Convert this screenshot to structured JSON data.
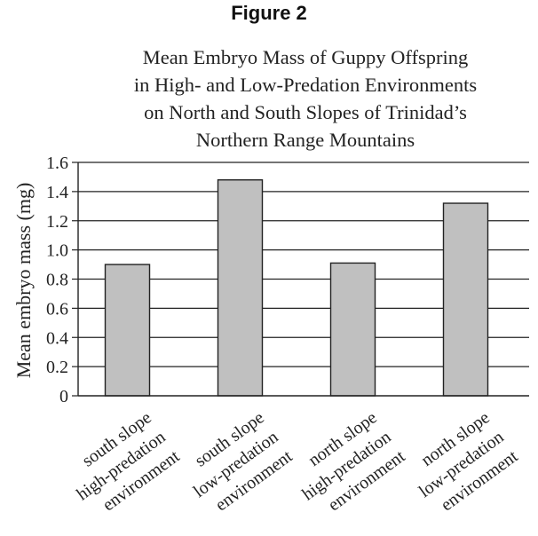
{
  "figure_label": "Figure 2",
  "chart_data": {
    "type": "bar",
    "title": [
      "Mean Embryo Mass of Guppy Offspring",
      "in High- and Low-Predation Environments",
      "on North and South Slopes of Trinidad’s",
      "Northern Range Mountains"
    ],
    "ylabel": "Mean embryo mass (mg)",
    "xlabel": "",
    "ylim": [
      0,
      1.6
    ],
    "yticks": [
      "0",
      "0.2",
      "0.4",
      "0.6",
      "0.8",
      "1.0",
      "1.2",
      "1.4",
      "1.6"
    ],
    "grid": true,
    "categories": [
      [
        "south slope",
        "high-predation",
        "environment"
      ],
      [
        "south slope",
        "low-predation",
        "environment"
      ],
      [
        "north slope",
        "high-predation",
        "environment"
      ],
      [
        "north slope",
        "low-predation",
        "environment"
      ]
    ],
    "values": [
      0.9,
      1.48,
      0.91,
      1.32
    ],
    "bar_color": "#c0c0c0"
  }
}
